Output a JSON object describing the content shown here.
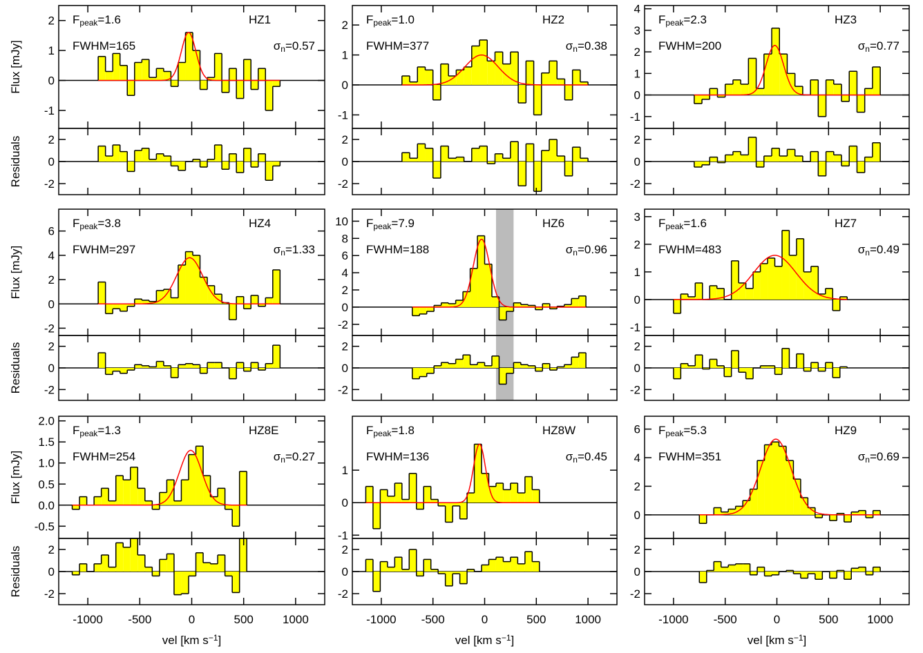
{
  "labels": {
    "flux": "Flux [mJy]",
    "residuals": "Residuals",
    "xlabel": "vel [km s",
    "xlabel_exp": "−1",
    "xlabel_end": "]",
    "fpeak_symbol": "F",
    "fpeak_sub": "peak",
    "equals": "=",
    "fwhm": "FWHM",
    "sigma_symbol": "σ",
    "sigma_sub": "n"
  },
  "chart_data": [
    {
      "type": "histogram",
      "title": "HZ1",
      "bins": [
        -900,
        -830,
        -760,
        -690,
        -620,
        -550,
        -480,
        -410,
        -340,
        -270,
        -200,
        -130,
        -60,
        10,
        80,
        150,
        220,
        290,
        360,
        430,
        500,
        570,
        640,
        710,
        780,
        850
      ],
      "values": [
        0.8,
        0.3,
        0.9,
        0.5,
        -0.5,
        0.6,
        0.7,
        0.1,
        0.4,
        0.3,
        -0.2,
        0.6,
        1.6,
        1.0,
        -0.3,
        0.1,
        0.9,
        -0.4,
        0.4,
        -0.6,
        0.7,
        -0.3,
        0.4,
        -1.0,
        -0.2
      ],
      "residuals": [
        1.4,
        0.5,
        1.5,
        0.9,
        -0.9,
        1.0,
        1.2,
        0.2,
        0.7,
        0.5,
        -0.4,
        -0.8,
        0,
        0.2,
        -0.5,
        0.2,
        1.5,
        -0.7,
        0.7,
        -1.0,
        1.2,
        -0.5,
        0.7,
        -1.7,
        -0.4
      ],
      "fit": {
        "peak": 1.6,
        "fwhm": 165,
        "center": -30
      },
      "peak_label": "1.6",
      "sigma_n": "0.57",
      "xlim": [
        -1280,
        1280
      ],
      "xticks": [
        -1000,
        -500,
        0,
        500,
        1000
      ],
      "ylim": [
        -1.6,
        2.5
      ],
      "yticks": [
        -1,
        0,
        1,
        2
      ],
      "residual_ylim": [
        -3,
        3
      ],
      "residual_yticks": [
        -2,
        0,
        2
      ],
      "colors": {
        "fill": "#ffff00",
        "line": "#000000",
        "fit": "#ff0000"
      }
    },
    {
      "type": "histogram",
      "title": "HZ2",
      "bins": [
        -800,
        -725,
        -650,
        -575,
        -500,
        -425,
        -350,
        -275,
        -200,
        -125,
        -50,
        25,
        100,
        175,
        250,
        325,
        400,
        475,
        550,
        625,
        700,
        775,
        850,
        925,
        1000
      ],
      "values": [
        0.3,
        0.1,
        0.6,
        0.5,
        -0.5,
        0.7,
        0.3,
        0.5,
        0.6,
        1.3,
        1.5,
        0.8,
        1.1,
        0.7,
        1.1,
        -0.6,
        0.8,
        -1.0,
        0.4,
        0.8,
        0.2,
        -0.5,
        0.5,
        0.1
      ],
      "residuals": [
        0.8,
        0.3,
        1.6,
        1.2,
        -1.5,
        1.4,
        0.3,
        0.4,
        0.0,
        1.2,
        1.4,
        -0.2,
        0.7,
        0.3,
        1.8,
        -2.2,
        1.6,
        -2.7,
        1.0,
        2.0,
        0.5,
        -1.3,
        1.3,
        0.3
      ],
      "fit": {
        "peak": 1.0,
        "fwhm": 377,
        "center": -30
      },
      "peak_label": "1.0",
      "sigma_n": "0.38",
      "xlim": [
        -1280,
        1280
      ],
      "xticks": [
        -1000,
        -500,
        0,
        500,
        1000
      ],
      "ylim": [
        -1.45,
        2.65
      ],
      "yticks": [
        -1,
        0,
        1,
        2
      ],
      "residual_ylim": [
        -3,
        3
      ],
      "residual_yticks": [
        -2,
        0,
        2
      ],
      "colors": {
        "fill": "#ffff00",
        "line": "#000000",
        "fit": "#ff0000"
      }
    },
    {
      "type": "histogram",
      "title": "HZ3",
      "bins": [
        -800,
        -725,
        -650,
        -575,
        -500,
        -425,
        -350,
        -275,
        -200,
        -125,
        -50,
        25,
        100,
        175,
        250,
        325,
        400,
        475,
        550,
        625,
        700,
        775,
        850,
        925,
        1000
      ],
      "values": [
        -0.4,
        -0.2,
        0.3,
        -0.1,
        0.5,
        0.7,
        0.5,
        1.7,
        0.3,
        1.9,
        3.1,
        1.9,
        1.0,
        0.4,
        0.0,
        0.7,
        -1.0,
        0.7,
        0.5,
        -0.3,
        1.1,
        -0.8,
        0.3,
        1.3
      ],
      "residuals": [
        -0.5,
        -0.3,
        0.4,
        -0.1,
        0.6,
        0.9,
        0.6,
        2.2,
        -0.5,
        0.5,
        1.2,
        0.5,
        1.1,
        0.5,
        0.0,
        0.9,
        -1.3,
        0.9,
        0.6,
        -0.4,
        1.4,
        -1.0,
        0.4,
        1.7
      ],
      "fit": {
        "peak": 2.3,
        "fwhm": 200,
        "center": -20
      },
      "peak_label": "2.3",
      "sigma_n": "0.77",
      "xlim": [
        -1280,
        1280
      ],
      "xticks": [
        -1000,
        -500,
        0,
        500,
        1000
      ],
      "ylim": [
        -1.55,
        4.15
      ],
      "yticks": [
        -1,
        0,
        1,
        2,
        3,
        4
      ],
      "residual_ylim": [
        -3,
        3
      ],
      "residual_yticks": [
        -2,
        0,
        2
      ],
      "colors": {
        "fill": "#ffff00",
        "line": "#000000",
        "fit": "#ff0000"
      }
    },
    {
      "type": "histogram",
      "title": "HZ4",
      "bins": [
        -900,
        -830,
        -760,
        -690,
        -620,
        -550,
        -480,
        -410,
        -340,
        -270,
        -200,
        -130,
        -60,
        10,
        80,
        150,
        220,
        290,
        360,
        430,
        500,
        570,
        640,
        710,
        780,
        850
      ],
      "values": [
        1.8,
        -0.8,
        -0.4,
        -0.6,
        -0.2,
        0.4,
        0.3,
        0.2,
        1.1,
        1.2,
        0.5,
        3.2,
        4.3,
        4.0,
        2.2,
        1.5,
        0.8,
        0.1,
        -1.3,
        0.6,
        -0.4,
        0.7,
        -0.2,
        0.5,
        2.8
      ],
      "residuals": [
        1.4,
        -0.6,
        -0.3,
        -0.5,
        -0.2,
        0.3,
        0.2,
        0.1,
        0.6,
        0.2,
        -0.9,
        0.3,
        0.4,
        0.3,
        -0.5,
        0.5,
        0.5,
        0.0,
        -1.0,
        0.5,
        -0.3,
        0.5,
        -0.2,
        0.4,
        2.1
      ],
      "fit": {
        "peak": 3.8,
        "fwhm": 297,
        "center": -20
      },
      "peak_label": "3.8",
      "sigma_n": "1.33",
      "xlim": [
        -1280,
        1280
      ],
      "xticks": [
        -1000,
        -500,
        0,
        500,
        1000
      ],
      "ylim": [
        -2.6,
        7.8
      ],
      "yticks": [
        -2,
        0,
        2,
        4,
        6
      ],
      "residual_ylim": [
        -3,
        3
      ],
      "residual_yticks": [
        -2,
        0,
        2
      ],
      "colors": {
        "fill": "#ffff00",
        "line": "#000000",
        "fit": "#ff0000"
      }
    },
    {
      "type": "histogram",
      "title": "HZ6",
      "bins": [
        -700,
        -630,
        -560,
        -490,
        -420,
        -350,
        -280,
        -210,
        -140,
        -70,
        0,
        70,
        140,
        210,
        280,
        350,
        420,
        490,
        560,
        630,
        700,
        770,
        840,
        910,
        980
      ],
      "values": [
        -1.0,
        -0.8,
        -0.5,
        0.2,
        0.5,
        0.4,
        0.8,
        1.8,
        4.5,
        8.3,
        5.0,
        1.2,
        -1.5,
        -0.5,
        0.5,
        0.3,
        0.2,
        -0.3,
        0.4,
        -0.2,
        0.1,
        0.3,
        1.0,
        1.3
      ],
      "residuals": [
        -1.0,
        -0.8,
        -0.5,
        0.2,
        0.5,
        0.4,
        0.8,
        1.2,
        0.3,
        0.5,
        0.2,
        1.1,
        -1.5,
        -0.5,
        0.5,
        0.3,
        0.2,
        -0.3,
        0.4,
        -0.2,
        0.1,
        0.3,
        1.0,
        1.4
      ],
      "fit": {
        "peak": 7.9,
        "fwhm": 188,
        "center": -30
      },
      "peak_label": "7.9",
      "sigma_n": "0.96",
      "masked": [
        110,
        280
      ],
      "xlim": [
        -1280,
        1280
      ],
      "xticks": [
        -1000,
        -500,
        0,
        500,
        1000
      ],
      "ylim": [
        -3.3,
        11.4
      ],
      "yticks": [
        -2,
        0,
        2,
        4,
        6,
        8,
        10
      ],
      "residual_ylim": [
        -3,
        3
      ],
      "residual_yticks": [
        -2,
        0,
        2
      ],
      "colors": {
        "fill": "#ffff00",
        "line": "#000000",
        "fit": "#ff0000",
        "masked": "#bbbbbb"
      }
    },
    {
      "type": "histogram",
      "title": "HZ7",
      "bins": [
        -1000,
        -930,
        -860,
        -790,
        -720,
        -650,
        -580,
        -510,
        -440,
        -370,
        -300,
        -230,
        -160,
        -90,
        -20,
        50,
        120,
        190,
        260,
        330,
        400,
        470,
        540,
        610,
        680
      ],
      "values": [
        -0.5,
        0.2,
        0.1,
        0.6,
        0.0,
        0.5,
        0.4,
        0.0,
        1.4,
        0.6,
        0.4,
        1.0,
        1.3,
        1.5,
        1.2,
        2.5,
        1.6,
        2.2,
        1.0,
        1.2,
        0.2,
        0.4,
        -0.4,
        0.1
      ],
      "residuals": [
        -1.0,
        0.4,
        0.2,
        1.2,
        -0.1,
        0.8,
        0.2,
        -0.8,
        1.6,
        -0.4,
        -1.0,
        0.0,
        0.2,
        0.2,
        -0.6,
        1.8,
        0.0,
        1.3,
        -0.3,
        0.5,
        -0.3,
        0.5,
        -0.9,
        0.1
      ],
      "fit": {
        "peak": 1.6,
        "fwhm": 483,
        "center": -20
      },
      "peak_label": "1.6",
      "sigma_n": "0.49",
      "xlim": [
        -1280,
        1280
      ],
      "xticks": [
        -1000,
        -500,
        0,
        500,
        1000
      ],
      "ylim": [
        -1.3,
        3.27
      ],
      "yticks": [
        -1,
        0,
        1,
        2,
        3
      ],
      "residual_ylim": [
        -3,
        3
      ],
      "residual_yticks": [
        -2,
        0,
        2
      ],
      "colors": {
        "fill": "#ffff00",
        "line": "#000000",
        "fit": "#ff0000"
      }
    },
    {
      "type": "histogram",
      "title": "HZ8E",
      "bins": [
        -1150,
        -1080,
        -1010,
        -940,
        -870,
        -800,
        -730,
        -660,
        -590,
        -520,
        -450,
        -380,
        -310,
        -240,
        -170,
        -100,
        -30,
        40,
        110,
        180,
        250,
        320,
        390,
        460,
        530
      ],
      "values": [
        -0.1,
        0.2,
        0.0,
        0.2,
        0.4,
        0.1,
        0.7,
        0.6,
        0.9,
        0.4,
        0.1,
        -0.1,
        0.3,
        0.6,
        0.1,
        0.6,
        1.2,
        1.4,
        0.7,
        0.2,
        0.4,
        -0.1,
        -0.5,
        0.8
      ],
      "residuals": [
        -0.3,
        0.7,
        0.0,
        0.7,
        1.5,
        0.4,
        2.6,
        2.2,
        3.0,
        1.5,
        0.4,
        -0.4,
        1.1,
        1.6,
        -2.1,
        -2.0,
        -0.4,
        1.7,
        0.8,
        0.7,
        1.5,
        -0.4,
        -1.9,
        3.0
      ],
      "fit": {
        "peak": 1.3,
        "fwhm": 254,
        "center": -10
      },
      "peak_label": "1.3",
      "sigma_n": "0.27",
      "xlim": [
        -1280,
        1280
      ],
      "xticks": [
        -1000,
        -500,
        0,
        500,
        1000
      ],
      "ylim": [
        -0.79,
        2.11
      ],
      "yticks": [
        -0.5,
        {
          "value": 0,
          "label": "0.0"
        },
        0.5,
        {
          "value": 1,
          "label": "1.0"
        },
        1.5,
        {
          "value": 2,
          "label": "2.0"
        }
      ],
      "residual_ylim": [
        -3,
        3
      ],
      "residual_yticks": [
        -2,
        0,
        2
      ],
      "colors": {
        "fill": "#ffff00",
        "line": "#000000",
        "fit": "#ff0000"
      }
    },
    {
      "type": "histogram",
      "title": "HZ8W",
      "bins": [
        -1150,
        -1080,
        -1010,
        -940,
        -870,
        -800,
        -730,
        -660,
        -590,
        -520,
        -450,
        -380,
        -310,
        -240,
        -170,
        -100,
        -30,
        40,
        110,
        180,
        250,
        320,
        390,
        460,
        530
      ],
      "values": [
        0.5,
        -0.8,
        0.4,
        0.2,
        0.6,
        0.1,
        0.9,
        -0.2,
        0.5,
        0.1,
        -0.1,
        -0.6,
        -0.1,
        -0.5,
        0.3,
        1.8,
        0.9,
        0.5,
        0.6,
        0.4,
        0.6,
        0.3,
        0.8,
        0.4
      ],
      "residuals": [
        1.1,
        -1.8,
        0.9,
        0.4,
        1.3,
        0.2,
        2.0,
        -0.4,
        1.1,
        0.2,
        -0.2,
        -1.3,
        -0.2,
        -1.1,
        0.2,
        0.0,
        0.6,
        1.1,
        1.3,
        0.9,
        1.3,
        0.7,
        1.8,
        0.9
      ],
      "fit": {
        "peak": 1.8,
        "fwhm": 136,
        "center": -50
      },
      "peak_label": "1.8",
      "sigma_n": "0.45",
      "xlim": [
        -1280,
        1280
      ],
      "xticks": [
        -1000,
        -500,
        0,
        500,
        1000
      ],
      "ylim": [
        -1.1,
        2.66
      ],
      "yticks": [
        -1,
        0,
        1
      ],
      "residual_ylim": [
        -3,
        3
      ],
      "residual_yticks": [
        -2,
        0,
        2
      ],
      "colors": {
        "fill": "#ffff00",
        "line": "#000000",
        "fit": "#ff0000"
      }
    },
    {
      "type": "histogram",
      "title": "HZ9",
      "bins": [
        -750,
        -680,
        -610,
        -540,
        -470,
        -400,
        -330,
        -260,
        -190,
        -120,
        -50,
        20,
        90,
        160,
        230,
        300,
        370,
        440,
        510,
        580,
        650,
        720,
        790,
        860,
        930,
        1000
      ],
      "values": [
        -0.6,
        0.0,
        0.5,
        0.2,
        0.4,
        0.6,
        1.0,
        1.8,
        3.8,
        4.9,
        5.1,
        4.8,
        3.8,
        2.5,
        1.2,
        0.5,
        -0.2,
        0.0,
        -0.4,
        0.1,
        -0.5,
        0.2,
        0.3,
        -0.2,
        0.3
      ],
      "residuals": [
        -1.0,
        0.1,
        0.9,
        0.4,
        0.6,
        0.7,
        0.7,
        -0.3,
        0.4,
        -0.4,
        -0.3,
        0.0,
        0.1,
        -0.2,
        -0.6,
        -0.2,
        -0.7,
        0.0,
        -0.6,
        0.1,
        -0.7,
        0.3,
        0.4,
        -0.3,
        0.4
      ],
      "fit": {
        "peak": 5.3,
        "fwhm": 351,
        "center": -10
      },
      "peak_label": "5.3",
      "sigma_n": "0.69",
      "xlim": [
        -1280,
        1280
      ],
      "xticks": [
        -1000,
        -500,
        0,
        500,
        1000
      ],
      "ylim": [
        -1.65,
        6.9
      ],
      "yticks": [
        0,
        2,
        4,
        6
      ],
      "residual_ylim": [
        -3,
        3
      ],
      "residual_yticks": [
        -2,
        0,
        2
      ],
      "colors": {
        "fill": "#ffff00",
        "line": "#000000",
        "fit": "#ff0000"
      }
    }
  ]
}
